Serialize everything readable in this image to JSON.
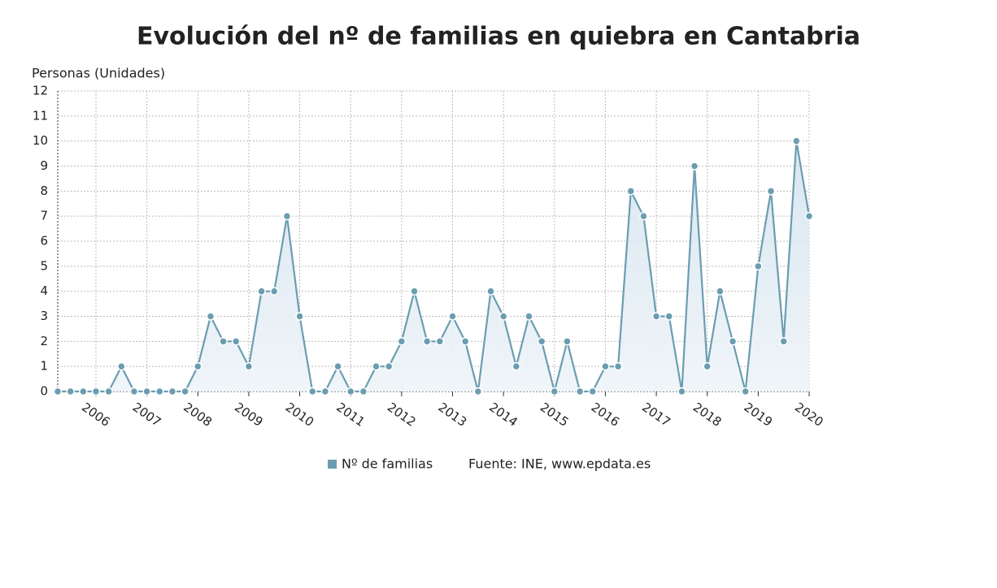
{
  "chart_data": {
    "type": "line",
    "title": "Evolución del nº de familias en quiebra en Cantabria",
    "y_label": "Personas (Unidades)",
    "source": "Fuente: INE, www.epdata.es",
    "categories": [
      null,
      null,
      null,
      "2006",
      null,
      null,
      null,
      "2007",
      null,
      null,
      null,
      "2008",
      null,
      null,
      null,
      "2009",
      null,
      null,
      null,
      "2010",
      null,
      null,
      null,
      "2011",
      null,
      null,
      null,
      "2012",
      null,
      null,
      null,
      "2013",
      null,
      null,
      null,
      "2014",
      null,
      null,
      null,
      "2015",
      null,
      null,
      null,
      "2016",
      null,
      null,
      null,
      "2017",
      null,
      null,
      null,
      "2018",
      null,
      null,
      null,
      "2019",
      null,
      null,
      null,
      "2020"
    ],
    "series": [
      {
        "name": "Nº de familias",
        "color": "#6b9db0",
        "values": [
          0,
          0,
          0,
          0,
          0,
          1,
          0,
          0,
          0,
          0,
          0,
          1,
          3,
          2,
          2,
          1,
          4,
          4,
          7,
          3,
          0,
          0,
          1,
          0,
          0,
          1,
          1,
          2,
          4,
          2,
          2,
          3,
          2,
          0,
          4,
          3,
          1,
          3,
          2,
          0,
          2,
          0,
          0,
          1,
          1,
          8,
          7,
          3,
          3,
          0,
          9,
          1,
          4,
          2,
          0,
          5,
          8,
          2,
          10,
          7
        ]
      }
    ],
    "ylim": [
      0,
      12
    ],
    "yticks": [
      0,
      1,
      2,
      3,
      4,
      5,
      6,
      7,
      8,
      9,
      10,
      11,
      12
    ],
    "grid": true
  }
}
